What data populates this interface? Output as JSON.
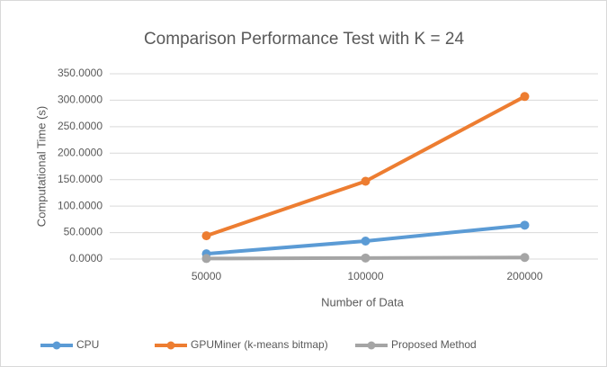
{
  "chart_data": {
    "type": "line",
    "title": "Comparison Performance Test with K = 24",
    "x_label": "Number of Data",
    "y_label": "Computational Time (s)",
    "categories": [
      "50000",
      "100000",
      "200000"
    ],
    "series": [
      {
        "name": "CPU",
        "color": "#5b9bd5",
        "values": [
          10,
          34,
          64
        ]
      },
      {
        "name": "GPUMiner (k-means bitmap)",
        "color": "#ed7d31",
        "values": [
          44,
          147,
          307
        ]
      },
      {
        "name": "Proposed Method",
        "color": "#a5a5a5",
        "values": [
          1,
          2,
          3
        ]
      }
    ],
    "ylim": [
      0,
      350
    ],
    "yticks": [
      {
        "value": 0,
        "label": "0.0000"
      },
      {
        "value": 50,
        "label": "50.0000"
      },
      {
        "value": 100,
        "label": "100.0000"
      },
      {
        "value": 150,
        "label": "150.0000"
      },
      {
        "value": 200,
        "label": "200.0000"
      },
      {
        "value": 250,
        "label": "250.0000"
      },
      {
        "value": 300,
        "label": "300.0000"
      },
      {
        "value": 350,
        "label": "350.0000"
      }
    ],
    "grid": true,
    "legend": "bottom"
  }
}
